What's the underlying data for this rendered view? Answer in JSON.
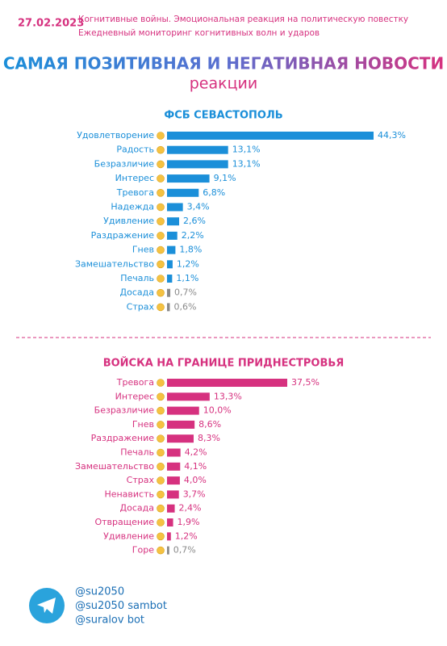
{
  "header": {
    "date": "27.02.2023",
    "line1": "Когнитивные войны. Эмоциональная реакция на политическую повестку",
    "line2": "Ежедневный мониторинг когнитивных волн и ударов",
    "title": "САМАЯ ПОЗИТИВНАЯ И НЕГАТИВНАЯ НОВОСТИ",
    "subtitle": "реакции"
  },
  "chart_data": [
    {
      "type": "bar",
      "orientation": "horizontal",
      "title": "ФСБ СЕВАСТОПОЛЬ",
      "categories": [
        "Удовлетворение",
        "Радость",
        "Безразличие",
        "Интерес",
        "Тревога",
        "Надежда",
        "Удивление",
        "Раздражение",
        "Гнев",
        "Замешательство",
        "Печаль",
        "Досада",
        "Страх"
      ],
      "values": [
        44.3,
        13.1,
        13.1,
        9.1,
        6.8,
        3.4,
        2.6,
        2.2,
        1.8,
        1.2,
        1.1,
        0.7,
        0.6
      ],
      "value_labels": [
        "44,3%",
        "13,1%",
        "13,1%",
        "9,1%",
        "6,8%",
        "3,4%",
        "2,6%",
        "2,2%",
        "1,8%",
        "1,2%",
        "1,1%",
        "0,7%",
        "0,6%"
      ],
      "colors": [
        "#1b8fd9",
        "#1b8fd9",
        "#1b8fd9",
        "#1b8fd9",
        "#1b8fd9",
        "#1b8fd9",
        "#1b8fd9",
        "#1b8fd9",
        "#1b8fd9",
        "#1b8fd9",
        "#1b8fd9",
        "#8a8a8a",
        "#8a8a8a"
      ]
    },
    {
      "type": "bar",
      "orientation": "horizontal",
      "title": "ВОЙСКА НА ГРАНИЦЕ ПРИДНЕСТРОВЬЯ",
      "categories": [
        "Тревога",
        "Интерес",
        "Безразличие",
        "Гнев",
        "Раздражение",
        "Печаль",
        "Замешательство",
        "Страх",
        "Ненависть",
        "Досада",
        "Отвращение",
        "Удивление",
        "Горе"
      ],
      "values": [
        37.5,
        13.3,
        10,
        8.6,
        8.3,
        4.2,
        4.1,
        4,
        3.7,
        2.4,
        1.9,
        1.2,
        0.7
      ],
      "value_labels": [
        "37,5%",
        "13,3%",
        "10,0%",
        "8,6%",
        "8,3%",
        "4,2%",
        "4,1%",
        "4,0%",
        "3,7%",
        "2,4%",
        "1,9%",
        "1,2%",
        "0,7%"
      ],
      "colors": [
        "#d6317f",
        "#d6317f",
        "#d6317f",
        "#d6317f",
        "#d6317f",
        "#d6317f",
        "#d6317f",
        "#d6317f",
        "#d6317f",
        "#d6317f",
        "#d6317f",
        "#d6317f",
        "#8a8a8a"
      ]
    }
  ],
  "footer": {
    "handles": [
      "@su2050",
      "@su2050 sambot",
      "@suralov bot"
    ]
  }
}
